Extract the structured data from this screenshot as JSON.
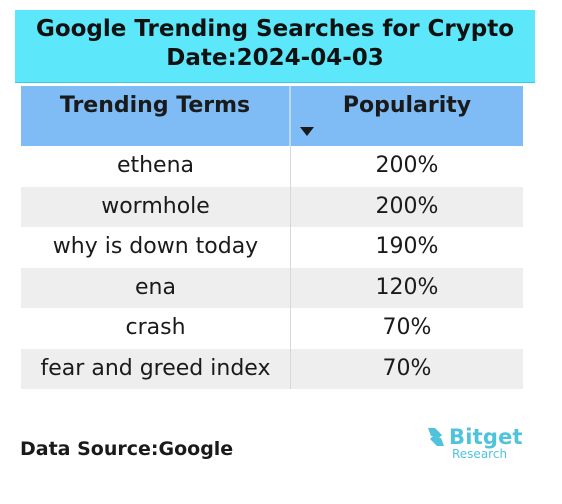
{
  "chart_data": {
    "type": "table",
    "title_line1": "Google Trending Searches for Crypto",
    "title_line2": "Date:2024-04-03",
    "columns": [
      "Trending Terms",
      "Popularity"
    ],
    "rows": [
      {
        "term": "ethena",
        "popularity": "200%"
      },
      {
        "term": "wormhole",
        "popularity": "200%"
      },
      {
        "term": "why is down today",
        "popularity": "190%"
      },
      {
        "term": "ena",
        "popularity": "120%"
      },
      {
        "term": "crash",
        "popularity": "70%"
      },
      {
        "term": "fear and greed index",
        "popularity": "70%"
      }
    ],
    "sort": {
      "column": "Popularity",
      "direction": "descending"
    }
  },
  "footer": {
    "source": "Data Source:Google",
    "logo_word": "Bitget",
    "logo_sub": "Research"
  },
  "colors": {
    "title_bg": "#5ce8fa",
    "header_bg": "#7fbcf5",
    "stripe_bg": "#eeeeee",
    "logo": "#4fc3dc"
  },
  "icons": {
    "sort": "sort-descending-icon",
    "logo": "bitget-logo-icon"
  }
}
